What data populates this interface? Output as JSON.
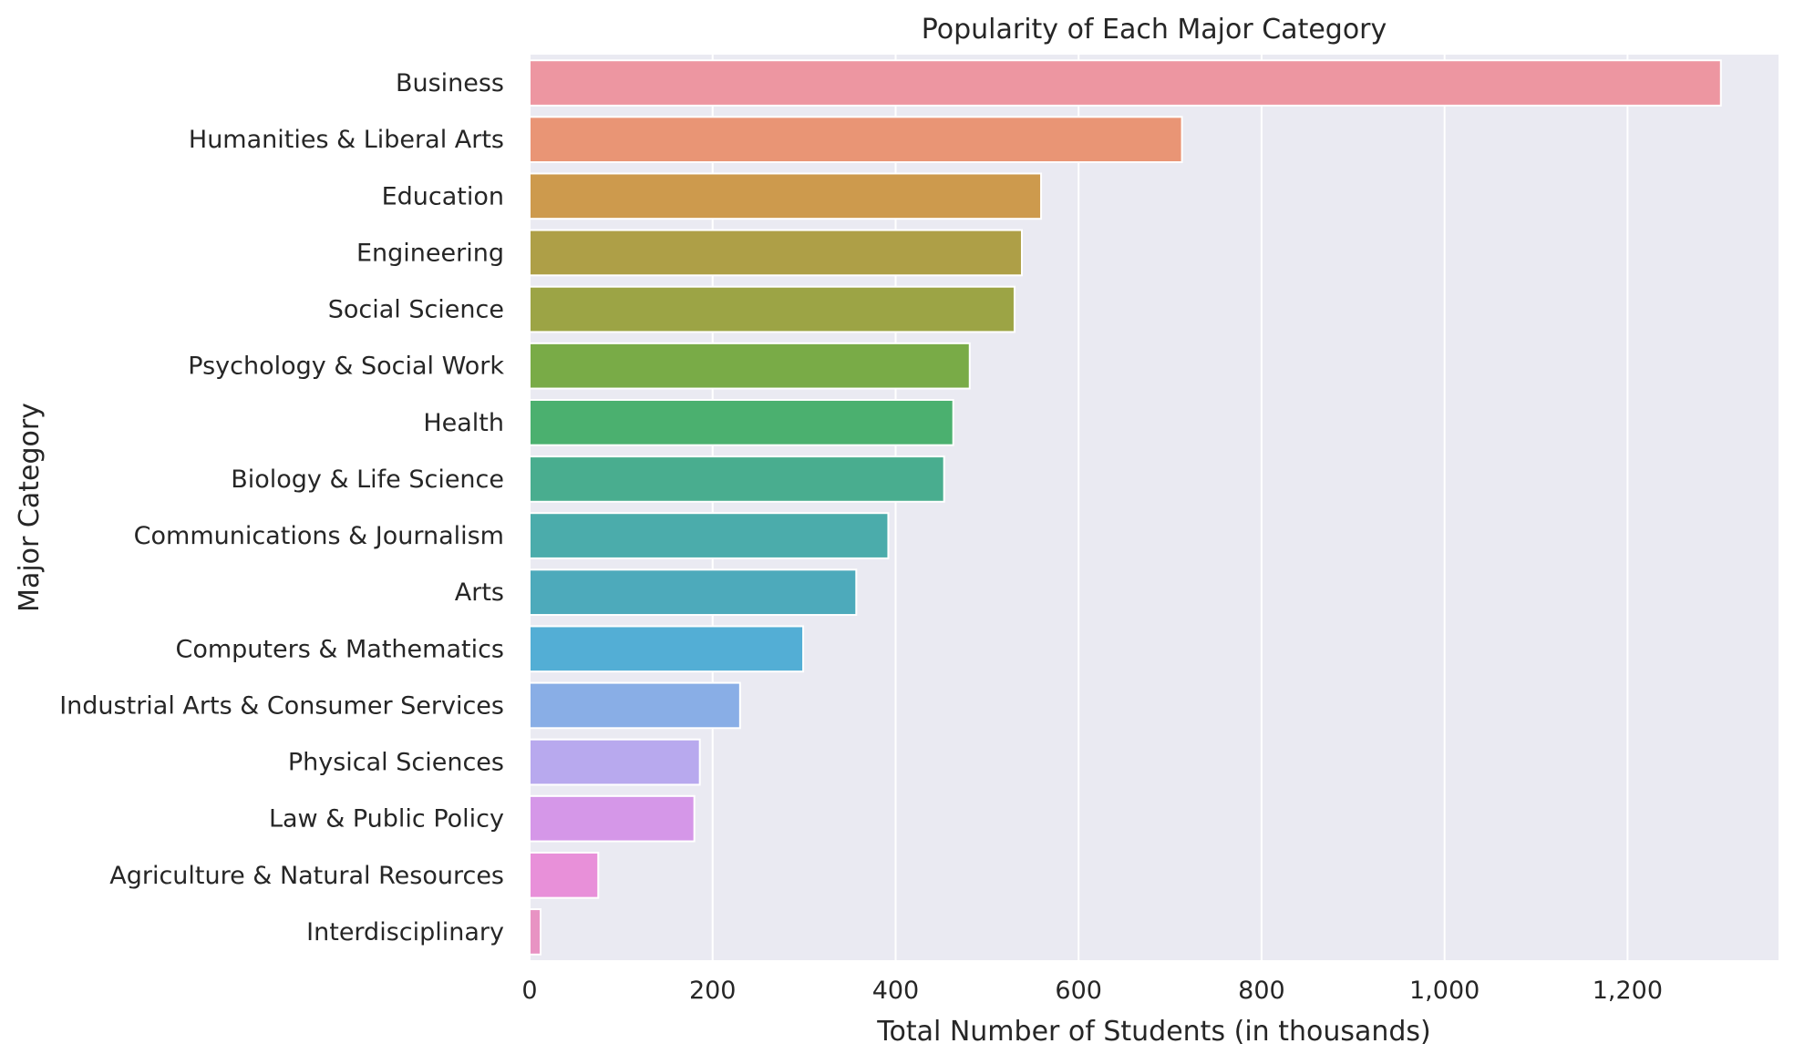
{
  "chart_data": {
    "type": "bar",
    "orientation": "horizontal",
    "title": "Popularity of Each Major Category",
    "xlabel": "Total Number of Students (in thousands)",
    "ylabel": "Major Category",
    "xlim": [
      0,
      1365
    ],
    "xticks": [
      0,
      200,
      400,
      600,
      800,
      1000,
      1200
    ],
    "xtick_labels": [
      "0",
      "200",
      "400",
      "600",
      "800",
      "1,000",
      "1,200"
    ],
    "grid": true,
    "categories": [
      "Business",
      "Humanities & Liberal Arts",
      "Education",
      "Engineering",
      "Social Science",
      "Psychology & Social Work",
      "Health",
      "Biology & Life Science",
      "Communications & Journalism",
      "Arts",
      "Computers & Mathematics",
      "Industrial Arts & Consumer Services",
      "Physical Sciences",
      "Law & Public Policy",
      "Agriculture & Natural Resources",
      "Interdisciplinary"
    ],
    "values": [
      1302,
      713,
      559,
      538,
      530,
      481,
      463,
      453,
      392,
      357,
      299,
      230,
      186,
      180,
      75,
      12
    ],
    "colors": [
      "#ed96a1",
      "#e99575",
      "#cd9a4d",
      "#ae9f47",
      "#9ca445",
      "#79ab47",
      "#4bb06f",
      "#49ad8f",
      "#4bacab",
      "#4daabb",
      "#53aed5",
      "#89aee6",
      "#b8a9ee",
      "#d597e8",
      "#e890d9",
      "#e893c3"
    ],
    "background_color": "#eaeaf2",
    "grid_color": "#ffffff"
  }
}
